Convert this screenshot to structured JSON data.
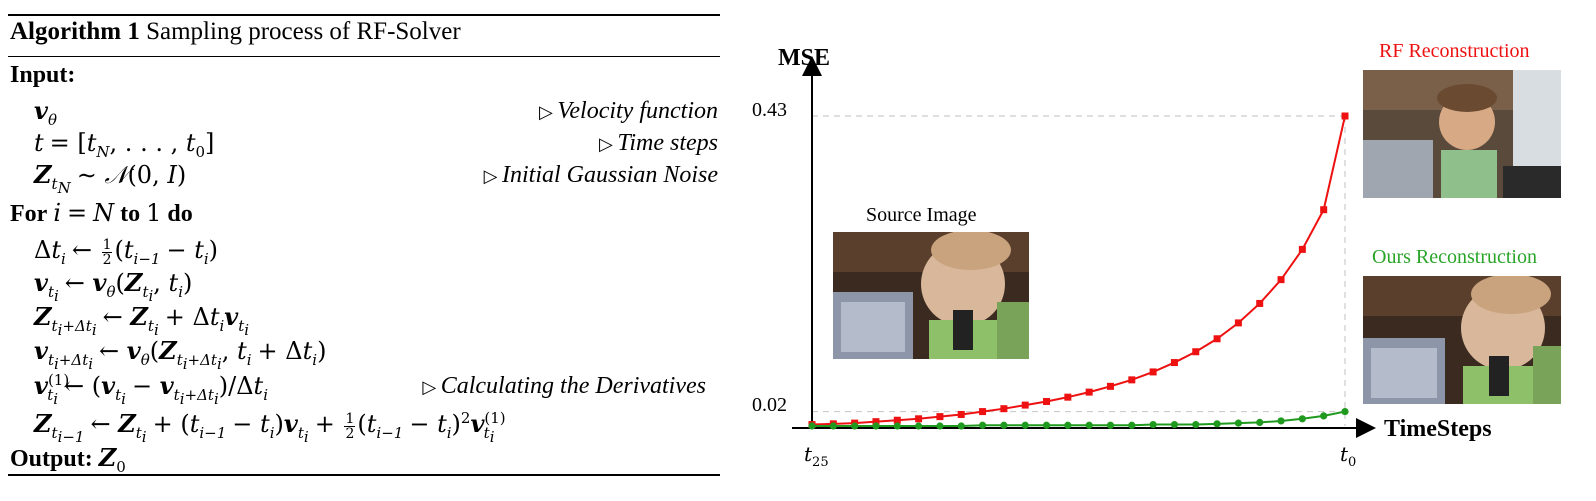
{
  "algorithm": {
    "label": "Algorithm 1",
    "title": "Sampling process of RF-Solver",
    "input_label": "Input:",
    "inputs": [
      {
        "comment": "Velocity function"
      },
      {
        "comment": "Time steps"
      },
      {
        "comment": "Initial Gaussian Noise"
      }
    ],
    "for_keyword": "For",
    "to_keyword": "to",
    "do_keyword": "do",
    "derivative_comment": "Calculating the Derivatives",
    "output_label": "Output:"
  },
  "figure": {
    "source_caption": "Source Image",
    "rf_caption": "RF Reconstruction",
    "ours_caption": "Ours Reconstruction",
    "colors": {
      "rf": "#ee1111",
      "ours": "#1f9a1f",
      "rf_caption": "#ee1111",
      "ours_caption": "#2aa52a"
    }
  },
  "chart_data": {
    "type": "line",
    "ylabel": "MSE",
    "xlabel": "TimeSteps",
    "x_tick_labels": [
      "t25",
      "t0"
    ],
    "y_tick_labels": [
      "0.43",
      "0.02"
    ],
    "x": [
      0,
      1,
      2,
      3,
      4,
      5,
      6,
      7,
      8,
      9,
      10,
      11,
      12,
      13,
      14,
      15,
      16,
      17,
      18,
      19,
      20,
      21,
      22,
      23,
      24,
      25
    ],
    "series": [
      {
        "name": "RF Reconstruction",
        "color": "#ee1111",
        "marker": "square",
        "values": [
          0.002,
          0.003,
          0.004,
          0.006,
          0.008,
          0.01,
          0.013,
          0.016,
          0.02,
          0.024,
          0.029,
          0.034,
          0.04,
          0.047,
          0.055,
          0.064,
          0.075,
          0.088,
          0.103,
          0.121,
          0.143,
          0.17,
          0.203,
          0.245,
          0.3,
          0.43
        ]
      },
      {
        "name": "Ours Reconstruction",
        "color": "#1f9a1f",
        "marker": "circle",
        "values": [
          0.0,
          0.0,
          0.0,
          0.0,
          0.0,
          0.0,
          0.0,
          0.0,
          0.001,
          0.001,
          0.001,
          0.001,
          0.001,
          0.001,
          0.001,
          0.001,
          0.002,
          0.002,
          0.002,
          0.003,
          0.004,
          0.005,
          0.007,
          0.01,
          0.014,
          0.02
        ]
      }
    ],
    "ylim": [
      0,
      0.43
    ],
    "reference_lines": [
      0.43,
      0.02
    ],
    "grid": false
  }
}
